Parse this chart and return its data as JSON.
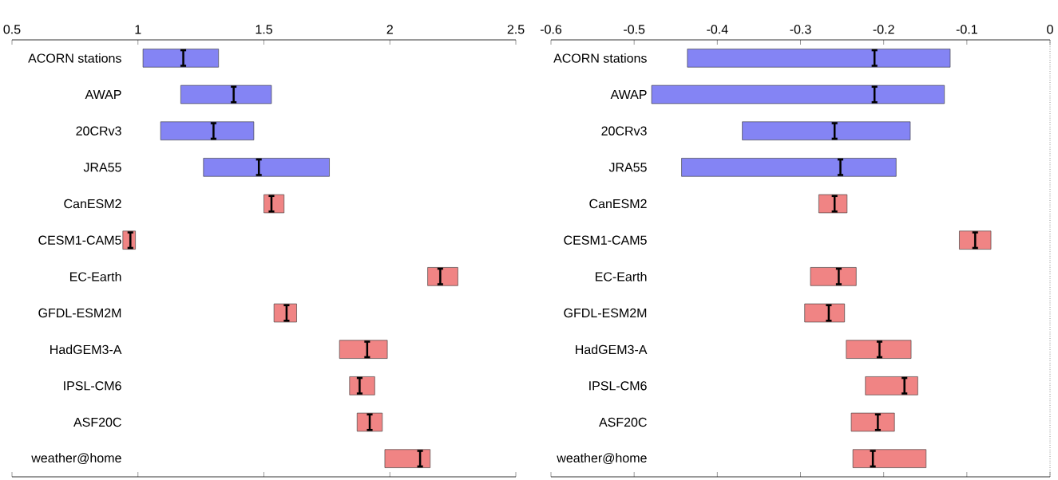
{
  "chart_data": [
    {
      "type": "bar",
      "orientation": "horizontal",
      "categories": [
        "ACORN stations",
        "AWAP",
        "20CRv3",
        "JRA55",
        "CanESM2",
        "CESM1-CAM5",
        "EC-Earth",
        "GFDL-ESM2M",
        "HadGEM3-A",
        "IPSL-CM6",
        "ASF20C",
        "weather@home"
      ],
      "xlim": [
        0.5,
        2.5
      ],
      "xticks": [
        0.5,
        1,
        1.5,
        2,
        2.5
      ],
      "series": [
        {
          "base": [
            1.02,
            1.17,
            1.09,
            1.26,
            1.5,
            0.94,
            2.15,
            1.54,
            1.8,
            1.84,
            1.87,
            1.98
          ],
          "values": [
            0.3,
            0.36,
            0.37,
            0.5,
            0.08,
            0.05,
            0.12,
            0.09,
            0.19,
            0.1,
            0.1,
            0.18
          ],
          "colors": [
            "#8484f4",
            "#8484f4",
            "#8484f4",
            "#8484f4",
            "#f08484",
            "#f08484",
            "#f08484",
            "#f08484",
            "#f08484",
            "#f08484",
            "#f08484",
            "#f08484"
          ]
        },
        {
          "type": "scatter",
          "color": "#000000",
          "x": [
            "ACORN stations",
            "AWAP",
            "20CRv3",
            "JRA55",
            "CanESM2",
            "CESM1-CAM5",
            "EC-Earth",
            "GFDL-ESM2M",
            "HadGEM3-A",
            "IPSL-CM6",
            "ASF20C",
            "weather@home"
          ],
          "values": [
            1.18,
            1.38,
            1.3,
            1.48,
            1.53,
            0.97,
            2.2,
            1.59,
            1.91,
            1.88,
            1.92,
            2.12
          ]
        }
      ]
    },
    {
      "type": "bar",
      "orientation": "horizontal",
      "categories": [
        "ACORN stations",
        "AWAP",
        "20CRv3",
        "JRA55",
        "CanESM2",
        "CESM1-CAM5",
        "EC-Earth",
        "GFDL-ESM2M",
        "HadGEM3-A",
        "IPSL-CM6",
        "ASF20C",
        "weather@home"
      ],
      "xlim": [
        -0.6,
        0
      ],
      "xticks": [
        -0.6,
        -0.5,
        -0.4,
        -0.3,
        -0.2,
        -0.1,
        0
      ],
      "ref_lines": [
        {
          "axis": "x",
          "value": 0,
          "line_style": "dotted",
          "color": "#555555"
        }
      ],
      "series": [
        {
          "base": [
            -0.436,
            -0.479,
            -0.37,
            -0.443,
            -0.278,
            -0.109,
            -0.288,
            -0.295,
            -0.245,
            -0.222,
            -0.239,
            -0.237
          ],
          "values": [
            0.316,
            0.352,
            0.202,
            0.258,
            0.034,
            0.038,
            0.055,
            0.048,
            0.078,
            0.063,
            0.052,
            0.088
          ],
          "colors": [
            "#8484f4",
            "#8484f4",
            "#8484f4",
            "#8484f4",
            "#f08484",
            "#f08484",
            "#f08484",
            "#f08484",
            "#f08484",
            "#f08484",
            "#f08484",
            "#f08484"
          ]
        },
        {
          "type": "scatter",
          "color": "#000000",
          "x": [
            "ACORN stations",
            "AWAP",
            "20CRv3",
            "JRA55",
            "CanESM2",
            "CESM1-CAM5",
            "EC-Earth",
            "GFDL-ESM2M",
            "HadGEM3-A",
            "IPSL-CM6",
            "ASF20C",
            "weather@home"
          ],
          "values": [
            -0.211,
            -0.211,
            -0.259,
            -0.252,
            -0.259,
            -0.09,
            -0.254,
            -0.266,
            -0.205,
            -0.175,
            -0.207,
            -0.213
          ]
        }
      ]
    }
  ]
}
